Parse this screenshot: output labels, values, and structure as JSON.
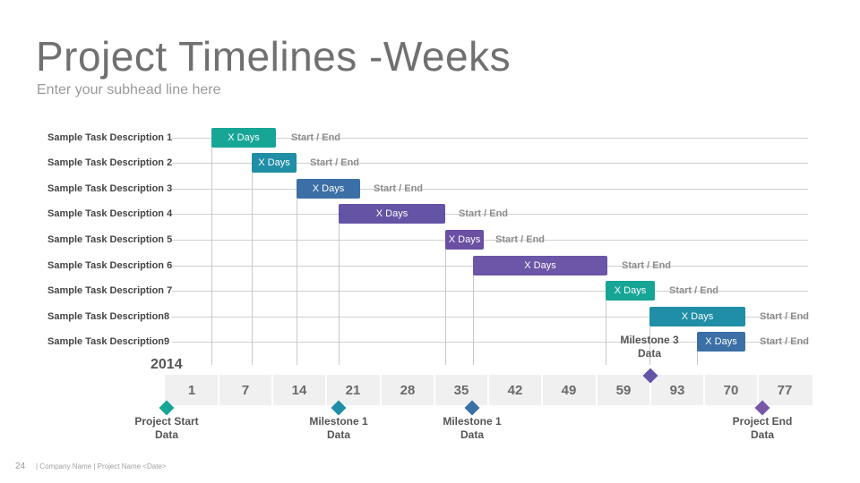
{
  "title": "Project Timelines -Weeks",
  "subhead": "Enter your subhead line here",
  "colors": {
    "teal": "#17a596",
    "blue_teal": "#1f8ea6",
    "blue": "#3b6fa6",
    "purple": "#6553a5"
  },
  "tasks": [
    {
      "label": "Sample Task Description 1",
      "bar": "X Days",
      "status": "Start / End"
    },
    {
      "label": "Sample Task Description 2",
      "bar": "X Days",
      "status": "Start / End"
    },
    {
      "label": "Sample Task Description 3",
      "bar": "X Days",
      "status": "Start / End"
    },
    {
      "label": "Sample Task Description 4",
      "bar": "X Days",
      "status": "Start / End"
    },
    {
      "label": "Sample Task Description 5",
      "bar": "X Days",
      "status": "Start / End"
    },
    {
      "label": "Sample Task Description 6",
      "bar": "X Days",
      "status": "Start / End"
    },
    {
      "label": "Sample Task Description 7",
      "bar": "X Days",
      "status": "Start / End"
    },
    {
      "label": "Sample Task Description8",
      "bar": "X Days",
      "status": "Start / End"
    },
    {
      "label": "Sample Task Description9",
      "bar": "X Days",
      "status": "Start / End"
    }
  ],
  "year": "2014",
  "axis": [
    "1",
    "7",
    "14",
    "21",
    "28",
    "35",
    "42",
    "49",
    "59",
    "93",
    "70",
    "77"
  ],
  "milestones": {
    "project_start": {
      "line1": "Project Start",
      "line2": "Data"
    },
    "milestone1_a": {
      "line1": "Milestone 1",
      "line2": "Data"
    },
    "milestone1_b": {
      "line1": "Milestone 1",
      "line2": "Data"
    },
    "milestone3": {
      "line1": "Milestone 3",
      "line2": "Data"
    },
    "project_end": {
      "line1": "Project End",
      "line2": "Data"
    }
  },
  "footer": {
    "page_number": "24",
    "text": "| Company Name | Project Name <Date>"
  }
}
